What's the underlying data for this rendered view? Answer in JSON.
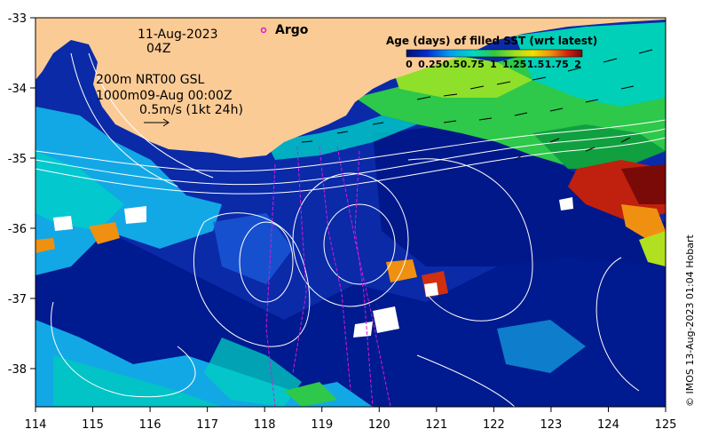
{
  "header": {
    "date": "11-Aug-2023",
    "time": "04Z"
  },
  "info": {
    "line1": "200m  NRT00 GSL",
    "line2": "1000m09-Aug 00:00Z",
    "line3": "0.5m/s (1kt 24h)"
  },
  "argo": {
    "label": "Argo",
    "color": "#e020e0"
  },
  "legend": {
    "title": "Age (days) of filled SST (wrt latest)",
    "ticks": [
      "0",
      "0.25",
      "0.5",
      "0.75",
      "1",
      "1.25",
      "1.5",
      "1.75",
      "2"
    ]
  },
  "credit": "© IMOS 13-Aug-2023 01:04 Hobart",
  "axes": {
    "x_ticks": [
      "114",
      "115",
      "116",
      "117",
      "118",
      "119",
      "120",
      "121",
      "122",
      "123",
      "124",
      "125"
    ],
    "y_ticks": [
      "-33",
      "-34",
      "-35",
      "-36",
      "-37",
      "-38"
    ]
  },
  "colors": {
    "land": "#fbcb96",
    "ocean_deep": "#001a8f",
    "ocean_blue": "#0a3cc8",
    "ocean_light": "#12a8e6",
    "cyan": "#00d6c8",
    "green": "#2ec84a",
    "lime": "#8fe02a",
    "orange": "#f08a10",
    "red": "#c0200e",
    "darkred": "#7a0a08",
    "contour": "#ffffff",
    "argo_track": "#d818d8"
  }
}
